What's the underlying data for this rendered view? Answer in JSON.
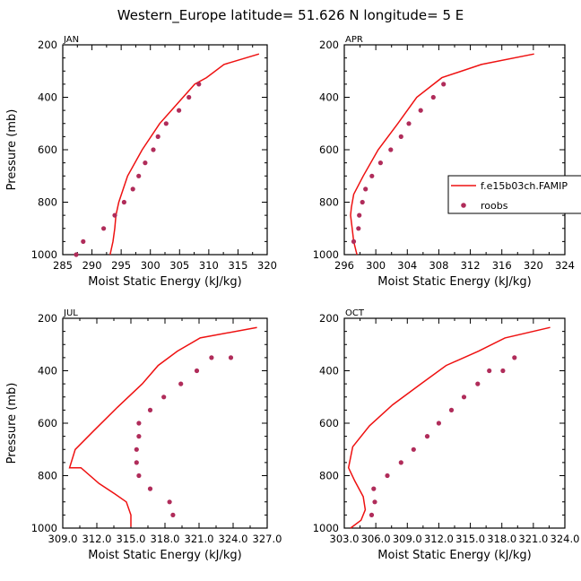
{
  "title": "Western_Europe  latitude= 51.626 N longitude= 5 E",
  "legend": {
    "model_label": "f.e15b03ch.FAMIP",
    "obs_label": "roobs"
  },
  "colors": {
    "model": "#ee1111",
    "obs": "#b02c5a",
    "axis": "#000000"
  },
  "chart_data": [
    {
      "type": "line",
      "panel": "JAN",
      "xlabel": "Moist Static Energy (kJ/kg)",
      "ylabel": "Pressure (mb)",
      "xlim": [
        285,
        320
      ],
      "xticks": [
        285,
        290,
        295,
        300,
        305,
        310,
        315,
        320
      ],
      "xtick_labels": [
        "285",
        "290",
        "295",
        "300",
        "305",
        "310",
        "315",
        "320"
      ],
      "ylim": [
        200,
        1000
      ],
      "yticks": [
        200,
        400,
        600,
        800,
        1000
      ],
      "model": {
        "name": "f.e15b03ch.FAMIP",
        "x": [
          293.1,
          293.6,
          293.9,
          294.1,
          294.6,
          296.1,
          298.6,
          301.6,
          304.6,
          307.6,
          309.6,
          312.6,
          318.6
        ],
        "p": [
          1000,
          950,
          900,
          850,
          800,
          700,
          600,
          500,
          425,
          350,
          325,
          275,
          235
        ]
      },
      "obs": {
        "name": "roobs",
        "x": [
          287.3,
          288.5,
          292.0,
          293.9,
          295.5,
          297.0,
          298.0,
          299.1,
          300.5,
          301.3,
          302.7,
          304.9,
          306.6,
          308.3
        ],
        "p": [
          1000,
          950,
          900,
          850,
          800,
          750,
          700,
          650,
          600,
          550,
          500,
          450,
          400,
          350
        ]
      }
    },
    {
      "type": "line",
      "panel": "APR",
      "xlabel": "Moist Static Energy (kJ/kg)",
      "ylabel": "Pressure (mb)",
      "xlim": [
        296,
        324
      ],
      "xticks": [
        296,
        300,
        304,
        308,
        312,
        316,
        320,
        324
      ],
      "xtick_labels": [
        "296",
        "300",
        "304",
        "308",
        "312",
        "316",
        "320",
        "324"
      ],
      "ylim": [
        200,
        1000
      ],
      "yticks": [
        200,
        400,
        600,
        800,
        1000
      ],
      "model": {
        "name": "f.e15b03ch.FAMIP",
        "x": [
          297.6,
          297.2,
          297.0,
          296.8,
          296.9,
          297.2,
          298.4,
          300.3,
          302.8,
          305.2,
          308.4,
          313.4,
          320.1
        ],
        "p": [
          1000,
          950,
          900,
          850,
          820,
          770,
          700,
          600,
          500,
          400,
          325,
          275,
          235
        ]
      },
      "obs": {
        "name": "roobs",
        "x": [
          297.2,
          297.8,
          297.9,
          298.3,
          298.7,
          299.5,
          300.6,
          301.9,
          303.2,
          304.2,
          305.7,
          307.3,
          308.6
        ],
        "p": [
          950,
          900,
          850,
          800,
          750,
          700,
          650,
          600,
          550,
          500,
          450,
          400,
          350
        ]
      }
    },
    {
      "type": "line",
      "panel": "JUL",
      "xlabel": "Moist Static Energy (kJ/kg)",
      "ylabel": "Pressure (mb)",
      "xlim": [
        309,
        327
      ],
      "xticks": [
        309,
        312,
        315,
        318,
        321,
        324,
        327
      ],
      "xtick_labels": [
        "309.0",
        "312.0",
        "315.0",
        "318.0",
        "321.0",
        "324.0",
        "327.0"
      ],
      "ylim": [
        200,
        1000
      ],
      "yticks": [
        200,
        400,
        600,
        800,
        1000
      ],
      "model": {
        "name": "f.e15b03ch.FAMIP",
        "x": [
          315.0,
          315.0,
          314.6,
          313.6,
          312.2,
          310.6,
          309.6,
          310.1,
          311.7,
          313.8,
          316.0,
          317.4,
          319.1,
          321.1,
          326.1
        ],
        "p": [
          995,
          950,
          900,
          870,
          830,
          770,
          770,
          700,
          630,
          540,
          450,
          380,
          325,
          275,
          235
        ]
      },
      "obs": {
        "name": "roobs",
        "x": [
          318.7,
          318.4,
          316.7,
          315.7,
          315.5,
          315.5,
          315.7,
          315.7,
          316.7,
          317.9,
          319.4,
          320.8,
          322.1,
          323.8
        ],
        "p": [
          950,
          900,
          850,
          800,
          750,
          700,
          650,
          600,
          550,
          500,
          450,
          400,
          350,
          350
        ]
      }
    },
    {
      "type": "line",
      "panel": "OCT",
      "xlabel": "Moist Static Energy (kJ/kg)",
      "ylabel": "Pressure (mb)",
      "xlim": [
        303,
        324
      ],
      "xticks": [
        303,
        306,
        309,
        312,
        315,
        318,
        321,
        324
      ],
      "xtick_labels": [
        "303.0",
        "306.0",
        "309.0",
        "312.0",
        "315.0",
        "318.0",
        "321.0",
        "324.0"
      ],
      "ylim": [
        200,
        1000
      ],
      "yticks": [
        200,
        400,
        600,
        800,
        1000
      ],
      "model": {
        "name": "f.e15b03ch.FAMIP",
        "x": [
          303.6,
          304.6,
          305.0,
          304.8,
          304.0,
          303.4,
          303.8,
          305.4,
          307.6,
          310.3,
          312.7,
          315.8,
          318.3,
          322.6
        ],
        "p": [
          1000,
          970,
          930,
          880,
          820,
          770,
          690,
          610,
          530,
          450,
          380,
          325,
          275,
          235
        ]
      },
      "obs": {
        "name": "roobs",
        "x": [
          305.6,
          305.9,
          305.8,
          307.1,
          308.4,
          309.6,
          310.9,
          312.0,
          313.2,
          314.4,
          315.7,
          316.8,
          318.1,
          319.2
        ],
        "p": [
          950,
          900,
          850,
          800,
          750,
          700,
          650,
          600,
          550,
          500,
          450,
          400,
          400,
          350
        ]
      }
    }
  ]
}
